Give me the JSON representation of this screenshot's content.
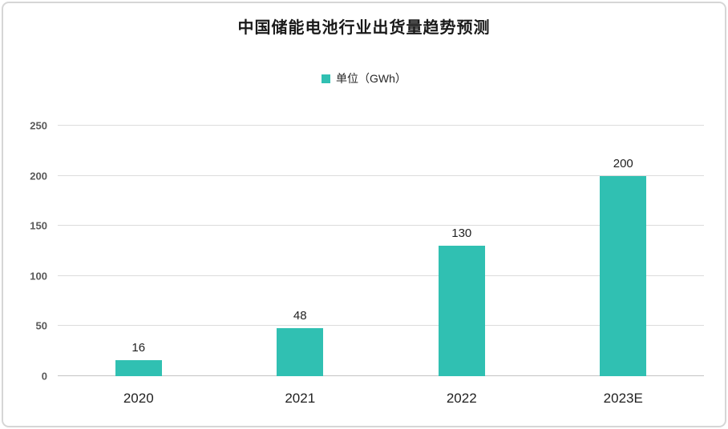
{
  "title": "中国储能电池行业出货量趋势预测",
  "legend": {
    "label": "单位（GWh）",
    "swatch_icon": "legend-square-swatch-icon",
    "swatch_color": "#30c0b2"
  },
  "chart_data": {
    "type": "bar",
    "title": "中国储能电池行业出货量趋势预测",
    "categories": [
      "2020",
      "2021",
      "2022",
      "2023E"
    ],
    "values": [
      16,
      48,
      130,
      200
    ],
    "series_name": "单位（GWh）",
    "unit": "GWh",
    "xlabel": "",
    "ylabel": "",
    "ylim": [
      0,
      250
    ],
    "yticks": [
      0,
      50,
      100,
      150,
      200,
      250
    ],
    "grid": true,
    "legend_position": "top-center",
    "data_labels": true,
    "bar_color": "#30c0b2"
  },
  "colors": {
    "bar": "#30c0b2",
    "gridline": "#dcdcdc",
    "axis_baseline": "#c4c4c4",
    "frame_border": "#d6d6d6",
    "title_text": "#1a1a1a",
    "ytick_text": "#595959",
    "label_text": "#1f1f1f"
  }
}
